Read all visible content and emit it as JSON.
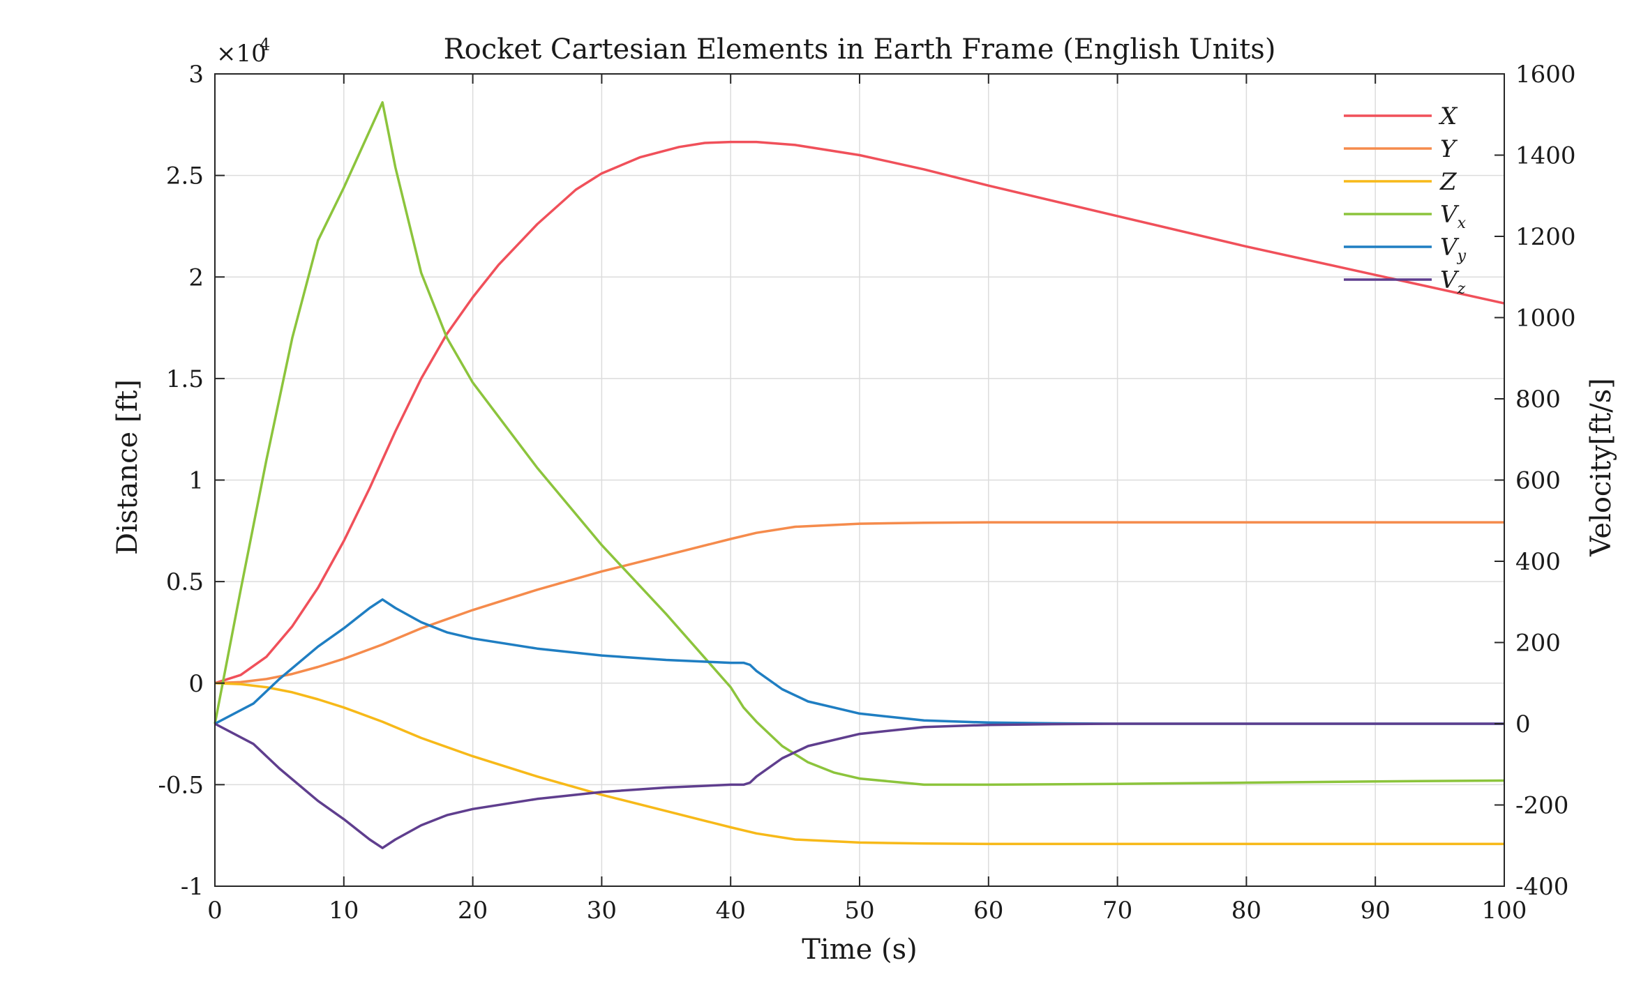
{
  "chart_data": {
    "type": "line",
    "title": "Rocket Cartesian Elements in Earth Frame (English Units)",
    "xlabel": "Time (s)",
    "ylabel_left": "Distance [ft]",
    "ylabel_right": "Velocity[ft/s]",
    "left_exponent_base": "×10",
    "left_exponent_power": "4",
    "xlim": [
      0,
      100
    ],
    "ylim_left": [
      -10000,
      30000
    ],
    "ylim_right": [
      -400,
      1600
    ],
    "x_ticks": [
      "0",
      "10",
      "20",
      "30",
      "40",
      "50",
      "60",
      "70",
      "80",
      "90",
      "100"
    ],
    "left_ticks": [
      {
        "value": -10000,
        "label": "-1"
      },
      {
        "value": -5000,
        "label": "-0.5"
      },
      {
        "value": 0,
        "label": "0"
      },
      {
        "value": 5000,
        "label": "0.5"
      },
      {
        "value": 10000,
        "label": "1"
      },
      {
        "value": 15000,
        "label": "1.5"
      },
      {
        "value": 20000,
        "label": "2"
      },
      {
        "value": 25000,
        "label": "2.5"
      },
      {
        "value": 30000,
        "label": "3"
      }
    ],
    "right_ticks": [
      {
        "value": -400,
        "label": "-400"
      },
      {
        "value": -200,
        "label": "-200"
      },
      {
        "value": 0,
        "label": "0"
      },
      {
        "value": 200,
        "label": "200"
      },
      {
        "value": 400,
        "label": "400"
      },
      {
        "value": 600,
        "label": "600"
      },
      {
        "value": 800,
        "label": "800"
      },
      {
        "value": 1000,
        "label": "1000"
      },
      {
        "value": 1200,
        "label": "1200"
      },
      {
        "value": 1400,
        "label": "1400"
      },
      {
        "value": 1600,
        "label": "1600"
      }
    ],
    "grid": true,
    "legend_position": "top-right",
    "series": [
      {
        "name": "X",
        "name_sub": "",
        "axis": "left",
        "color": "#f0505a",
        "x": [
          0,
          2,
          4,
          6,
          8,
          10,
          12,
          13,
          14,
          16,
          18,
          20,
          22,
          25,
          28,
          30,
          33,
          36,
          38,
          40,
          41,
          42,
          45,
          50,
          55,
          60,
          70,
          80,
          90,
          100
        ],
        "y": [
          0,
          400,
          1300,
          2800,
          4700,
          7000,
          9600,
          11000,
          12400,
          15000,
          17200,
          19000,
          20600,
          22600,
          24300,
          25100,
          25900,
          26400,
          26600,
          26650,
          26650,
          26650,
          26500,
          26000,
          25300,
          24500,
          23000,
          21500,
          20100,
          18700
        ]
      },
      {
        "name": "Y",
        "name_sub": "",
        "axis": "left",
        "color": "#f58b4c",
        "x": [
          0,
          2,
          4,
          6,
          8,
          10,
          13,
          16,
          20,
          25,
          30,
          35,
          40,
          42,
          45,
          50,
          55,
          60,
          70,
          80,
          90,
          100
        ],
        "y": [
          0,
          50,
          200,
          450,
          800,
          1200,
          1900,
          2700,
          3600,
          4600,
          5500,
          6300,
          7100,
          7400,
          7700,
          7850,
          7900,
          7920,
          7920,
          7920,
          7920,
          7920
        ]
      },
      {
        "name": "Z",
        "name_sub": "",
        "axis": "left",
        "color": "#f7b919",
        "x": [
          0,
          2,
          4,
          6,
          8,
          10,
          13,
          16,
          20,
          25,
          30,
          35,
          40,
          42,
          45,
          50,
          55,
          60,
          70,
          80,
          90,
          100
        ],
        "y": [
          0,
          -50,
          -200,
          -450,
          -800,
          -1200,
          -1900,
          -2700,
          -3600,
          -4600,
          -5500,
          -6300,
          -7100,
          -7400,
          -7700,
          -7850,
          -7900,
          -7920,
          -7920,
          -7920,
          -7920,
          -7920
        ]
      },
      {
        "name": "V",
        "name_sub": "x",
        "axis": "right",
        "color": "#8cc43c",
        "x": [
          0,
          2,
          4,
          6,
          8,
          10,
          12,
          13,
          14,
          16,
          18,
          20,
          25,
          30,
          35,
          40,
          41,
          42,
          44,
          46,
          48,
          50,
          55,
          60,
          70,
          80,
          90,
          100
        ],
        "y": [
          0,
          330,
          650,
          950,
          1190,
          1320,
          1460,
          1530,
          1370,
          1110,
          950,
          840,
          630,
          440,
          270,
          90,
          40,
          5,
          -55,
          -95,
          -120,
          -135,
          -150,
          -150,
          -148,
          -145,
          -142,
          -140
        ]
      },
      {
        "name": "V",
        "name_sub": "y",
        "axis": "right",
        "color": "#1f7ec2",
        "x": [
          0,
          3,
          5,
          8,
          10,
          12,
          13,
          14,
          16,
          18,
          20,
          25,
          30,
          35,
          40,
          41,
          41.5,
          42,
          44,
          46,
          50,
          55,
          60,
          65,
          70,
          80,
          90,
          100
        ],
        "y": [
          0,
          50,
          110,
          190,
          235,
          285,
          306,
          285,
          250,
          225,
          210,
          185,
          168,
          157,
          150,
          150,
          145,
          130,
          85,
          55,
          25,
          8,
          3,
          1,
          0,
          0,
          0,
          0
        ]
      },
      {
        "name": "V",
        "name_sub": "z",
        "axis": "right",
        "color": "#5f3e8e",
        "x": [
          0,
          3,
          5,
          8,
          10,
          12,
          13,
          14,
          16,
          18,
          20,
          25,
          30,
          35,
          40,
          41,
          41.5,
          42,
          44,
          46,
          50,
          55,
          60,
          65,
          70,
          80,
          90,
          100
        ],
        "y": [
          0,
          -50,
          -110,
          -190,
          -235,
          -285,
          -306,
          -285,
          -250,
          -225,
          -210,
          -185,
          -168,
          -157,
          -150,
          -150,
          -145,
          -130,
          -85,
          -55,
          -25,
          -8,
          -3,
          -1,
          0,
          0,
          0,
          0
        ]
      }
    ]
  }
}
